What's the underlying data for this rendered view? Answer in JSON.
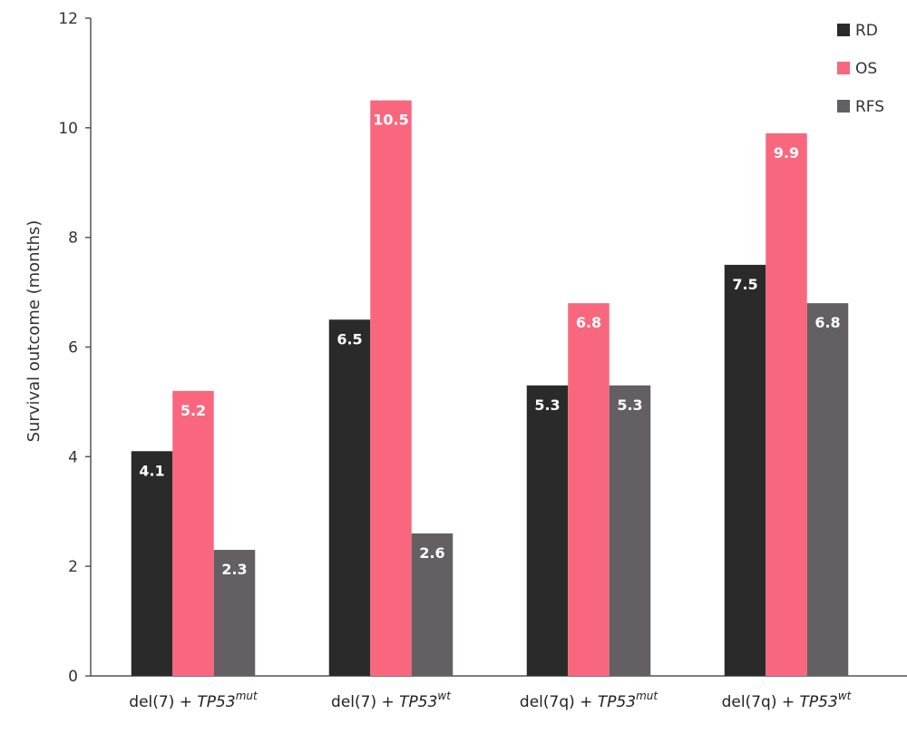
{
  "chart_data": {
    "type": "bar",
    "ylabel": "Survival outcome (months)",
    "ylim": [
      0,
      12
    ],
    "yticks": [
      0,
      2,
      4,
      6,
      8,
      10,
      12
    ],
    "categories": [
      {
        "base": "del(7) + ",
        "gene": "TP53",
        "sup": "mut"
      },
      {
        "base": "del(7) + ",
        "gene": "TP53",
        "sup": "wt"
      },
      {
        "base": "del(7q) + ",
        "gene": "TP53",
        "sup": "mut"
      },
      {
        "base": "del(7q) + ",
        "gene": "TP53",
        "sup": "wt"
      }
    ],
    "series": [
      {
        "name": "RD",
        "color": "#2b2a2b",
        "values": [
          4.1,
          6.5,
          5.3,
          7.5
        ]
      },
      {
        "name": "OS",
        "color": "#f9677e",
        "values": [
          5.2,
          10.5,
          6.8,
          9.9
        ]
      },
      {
        "name": "RFS",
        "color": "#645f62",
        "values": [
          2.3,
          2.6,
          5.3,
          6.8
        ]
      }
    ],
    "legend_position": "top-right",
    "grid": false
  }
}
